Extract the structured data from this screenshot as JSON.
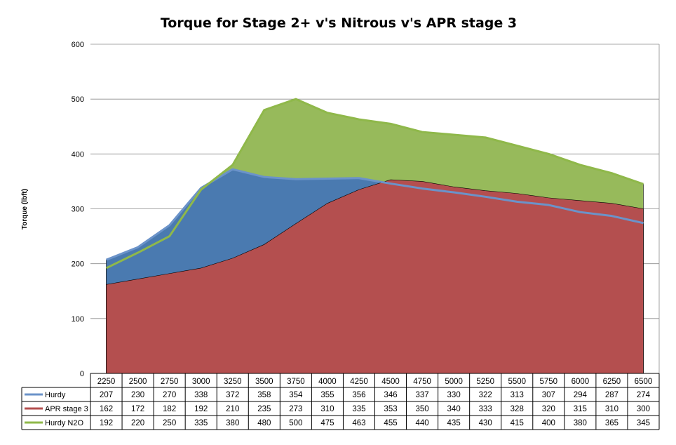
{
  "chart_data": {
    "type": "area",
    "title": "Torque for Stage 2+ v's Nitrous v's APR stage 3",
    "xlabel": "",
    "ylabel": "Torque (lbft)",
    "ylim": [
      0,
      600
    ],
    "yticks": [
      0,
      100,
      200,
      300,
      400,
      500,
      600
    ],
    "grid": true,
    "legend": "data-table",
    "categories": [
      "2250",
      "2500",
      "2750",
      "3000",
      "3250",
      "3500",
      "3750",
      "4000",
      "4250",
      "4500",
      "4750",
      "5000",
      "5250",
      "5500",
      "5750",
      "6000",
      "6250",
      "6500"
    ],
    "series": [
      {
        "name": "Hurdy",
        "render": "area+line",
        "color": "#4a7ab0",
        "line_color": "#6b93c9",
        "values": [
          207,
          230,
          270,
          338,
          372,
          358,
          354,
          355,
          356,
          346,
          337,
          330,
          322,
          313,
          307,
          294,
          287,
          274
        ]
      },
      {
        "name": "APR stage 3",
        "render": "area",
        "color": "#b44f4f",
        "values": [
          162,
          172,
          182,
          192,
          210,
          235,
          273,
          310,
          335,
          353,
          350,
          340,
          333,
          328,
          320,
          315,
          310,
          300
        ]
      },
      {
        "name": "Hurdy N2O",
        "render": "area+line",
        "color": "#97ba5b",
        "line_color": "#8fb84a",
        "values": [
          192,
          220,
          250,
          335,
          380,
          480,
          500,
          475,
          463,
          455,
          440,
          435,
          430,
          415,
          400,
          380,
          365,
          345
        ]
      }
    ]
  }
}
